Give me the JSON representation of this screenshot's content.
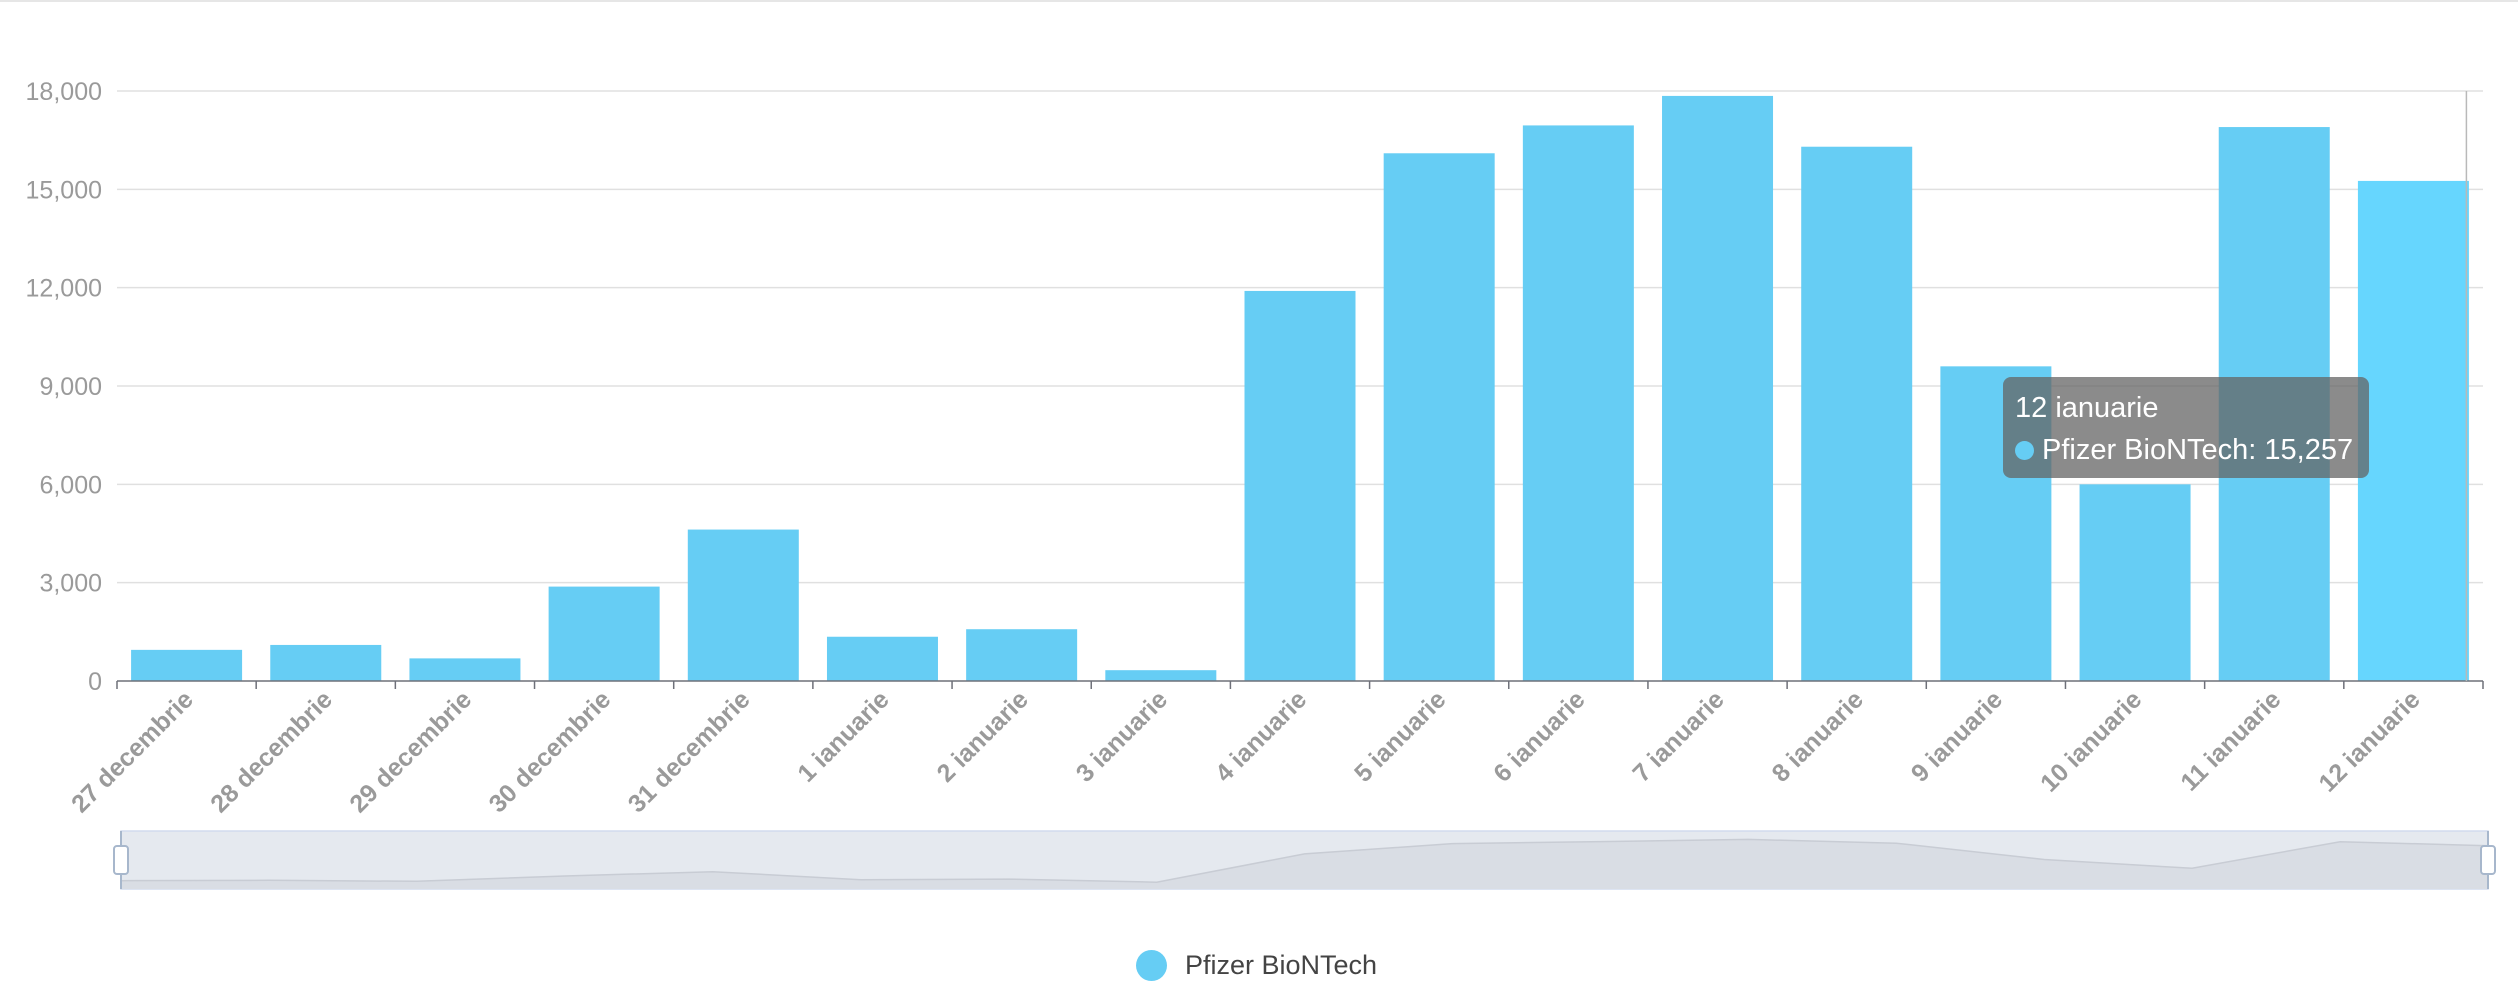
{
  "chart_data": {
    "type": "bar",
    "categories": [
      "27 decembrie",
      "28 decembrie",
      "29 decembrie",
      "30 decembrie",
      "31 decembrie",
      "1 ianuarie",
      "2 ianuarie",
      "3 ianuarie",
      "4 ianuarie",
      "5 ianuarie",
      "6 ianuarie",
      "7 ianuarie",
      "8 ianuarie",
      "9 ianuarie",
      "10 ianuarie",
      "11 ianuarie",
      "12 ianuarie"
    ],
    "series": [
      {
        "name": "Pfizer BioNTech",
        "values": [
          950,
          1100,
          690,
          2880,
          4620,
          1350,
          1580,
          330,
          11900,
          16100,
          16950,
          17850,
          16300,
          9600,
          6000,
          16900,
          15257
        ]
      }
    ],
    "ylim": [
      0,
      18000
    ],
    "yticks": [
      "0",
      "3,000",
      "6,000",
      "9,000",
      "12,000",
      "15,000",
      "18,000"
    ],
    "grid": true,
    "legend_position": "bottom-center",
    "colors": {
      "bar": "#66CDF4",
      "bar_highlight": "#66D6FE",
      "axis_text": "#9a9a9a"
    },
    "highlighted_index": 16
  },
  "tooltip": {
    "title": "12 ianuarie",
    "label": "Pfizer BioNTech: 15,257"
  },
  "legend": {
    "label": "Pfizer BioNTech"
  }
}
